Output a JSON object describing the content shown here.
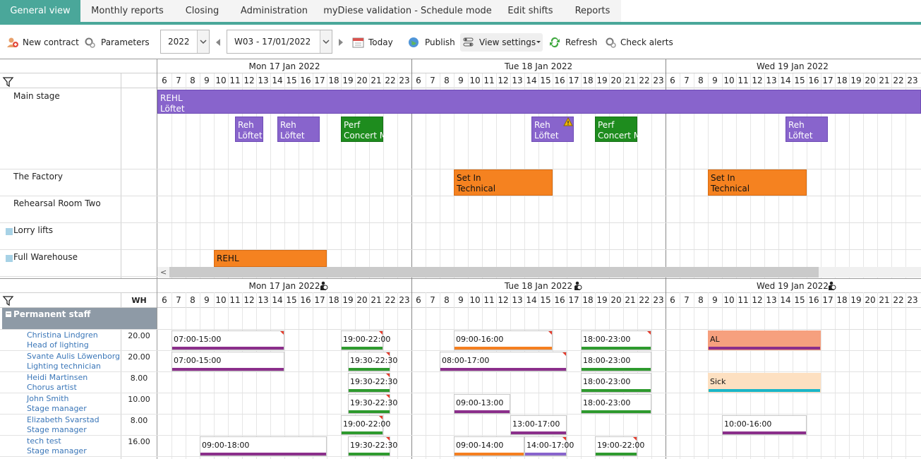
{
  "tabs": [
    {
      "label": "General view",
      "active": true
    },
    {
      "label": "Monthly reports"
    },
    {
      "label": "Closing"
    },
    {
      "label": "Administration"
    },
    {
      "label": "myDiese validation - Schedule mode"
    },
    {
      "label": "Edit shifts"
    },
    {
      "label": "Reports"
    }
  ],
  "toolbar": {
    "new_contract": "New contract",
    "parameters": "Parameters",
    "year": "2022",
    "week": "W03 - 17/01/2022",
    "today": "Today",
    "publish": "Publish",
    "view_settings": "View settings",
    "refresh": "Refresh",
    "check_alerts": "Check alerts"
  },
  "days": [
    "Mon 17 Jan 2022",
    "Tue 18 Jan 2022",
    "Wed 19 Jan 2022"
  ],
  "hours": [
    "6",
    "7",
    "8",
    "9",
    "10",
    "11",
    "12",
    "13",
    "14",
    "15",
    "16",
    "17",
    "18",
    "19",
    "20",
    "21",
    "22",
    "23"
  ],
  "resources": [
    {
      "name": "Main stage",
      "checkbox": false
    },
    {
      "name": "The Factory",
      "checkbox": false
    },
    {
      "name": "Rehearsal Room Two",
      "checkbox": false
    },
    {
      "name": "Lorry lifts",
      "checkbox": true
    },
    {
      "name": "Full Warehouse",
      "checkbox": true
    }
  ],
  "events": [
    {
      "l1": "REHL",
      "l2": "Löftet",
      "color": "purple",
      "res": 0,
      "row": 0,
      "start_day": 0,
      "start_hour": 6,
      "end_day": 2,
      "end_hour": 24.6
    },
    {
      "l1": "Reh",
      "l2": "Löftet",
      "color": "purple",
      "res": 0,
      "row": 1,
      "start_day": 0,
      "start_hour": 11.5,
      "end_day": 0,
      "end_hour": 13.5
    },
    {
      "l1": "Reh",
      "l2": "Löftet",
      "color": "purple",
      "res": 0,
      "row": 1,
      "start_day": 0,
      "start_hour": 14.5,
      "end_day": 0,
      "end_hour": 17.5
    },
    {
      "l1": "Perf",
      "l2": "Concert M",
      "color": "green",
      "res": 0,
      "row": 1,
      "start_day": 0,
      "start_hour": 19,
      "end_day": 0,
      "end_hour": 22
    },
    {
      "l1": "Reh",
      "l2": "Löftet",
      "color": "purple",
      "res": 0,
      "row": 1,
      "start_day": 1,
      "start_hour": 14.5,
      "end_day": 1,
      "end_hour": 17.5,
      "warning": true
    },
    {
      "l1": "Perf",
      "l2": "Concert M",
      "color": "green",
      "res": 0,
      "row": 1,
      "start_day": 1,
      "start_hour": 19,
      "end_day": 1,
      "end_hour": 22
    },
    {
      "l1": "Reh",
      "l2": "Löftet",
      "color": "purple",
      "res": 0,
      "row": 1,
      "start_day": 2,
      "start_hour": 14.5,
      "end_day": 2,
      "end_hour": 17.5
    },
    {
      "l1": "Set In",
      "l2": "Technical",
      "color": "orange",
      "res": 1,
      "row": 0,
      "start_day": 1,
      "start_hour": 9,
      "end_day": 1,
      "end_hour": 16
    },
    {
      "l1": "Set In",
      "l2": "Technical",
      "color": "orange",
      "res": 1,
      "row": 0,
      "start_day": 2,
      "start_hour": 9,
      "end_day": 2,
      "end_hour": 16
    },
    {
      "l1": "REHL",
      "l2": "",
      "color": "orange",
      "res": 4,
      "row": 0,
      "start_day": 0,
      "start_hour": 10,
      "end_day": 0,
      "end_hour": 18
    }
  ],
  "staff": {
    "wh_label": "WH",
    "group_label": "Permanent staff",
    "members": [
      {
        "name": "Christina Lindgren",
        "role": "Head of lighting",
        "wh": "20.00"
      },
      {
        "name": "Svante Aulis Löwenborg",
        "role": "Lighting technician",
        "wh": "20.00"
      },
      {
        "name": "Heidi Martinsen",
        "role": "Chorus artist",
        "wh": "8.00"
      },
      {
        "name": "John Smith",
        "role": "Stage manager",
        "wh": "10.00"
      },
      {
        "name": "Elizabeth Svarstad",
        "role": "Stage manager",
        "wh": "8.00"
      },
      {
        "name": "tech test",
        "role": "Stage manager",
        "wh": "16.00"
      }
    ]
  },
  "shifts": [
    {
      "row": 0,
      "day": 0,
      "s": 7,
      "e": 15,
      "text": "07:00-15:00",
      "bar": "#8b2f8b",
      "tri": true
    },
    {
      "row": 0,
      "day": 0,
      "s": 19,
      "e": 22,
      "text": "19:00-22:00",
      "bar": "#2e9a2e",
      "tri": true
    },
    {
      "row": 0,
      "day": 1,
      "s": 9,
      "e": 16,
      "text": "09:00-16:00",
      "bar": "#f57f20",
      "tri": true
    },
    {
      "row": 0,
      "day": 1,
      "s": 18,
      "e": 23,
      "text": "18:00-23:00",
      "bar": "#2e9a2e",
      "tri": true
    },
    {
      "row": 0,
      "day": 2,
      "s": 9,
      "e": 17,
      "text": "AL",
      "bar": "#8b2f8b",
      "bg": "#f6a07e"
    },
    {
      "row": 1,
      "day": 0,
      "s": 7,
      "e": 15,
      "text": "07:00-15:00",
      "bar": "#8b2f8b"
    },
    {
      "row": 1,
      "day": 0,
      "s": 19.5,
      "e": 22.5,
      "text": "19:30-22:30",
      "bar": "#2e9a2e",
      "tri": true
    },
    {
      "row": 1,
      "day": 1,
      "s": 8,
      "e": 17,
      "text": "08:00-17:00",
      "bar": "#8b2f8b",
      "tri": true
    },
    {
      "row": 1,
      "day": 1,
      "s": 18,
      "e": 23,
      "text": "18:00-23:00",
      "bar": "#2e9a2e"
    },
    {
      "row": 2,
      "day": 0,
      "s": 19.5,
      "e": 22.5,
      "text": "19:30-22:30",
      "bar": "#2e9a2e",
      "tri": true
    },
    {
      "row": 2,
      "day": 1,
      "s": 18,
      "e": 23,
      "text": "18:00-23:00",
      "bar": "#2e9a2e"
    },
    {
      "row": 2,
      "day": 2,
      "s": 9,
      "e": 17,
      "text": "Sick",
      "bar": "#1ab6c8",
      "bg": "#fde0c1"
    },
    {
      "row": 3,
      "day": 0,
      "s": 19.5,
      "e": 22.5,
      "text": "19:30-22:30",
      "bar": "#2e9a2e",
      "tri": true
    },
    {
      "row": 3,
      "day": 1,
      "s": 9,
      "e": 13,
      "text": "09:00-13:00",
      "bar": "#8b2f8b"
    },
    {
      "row": 3,
      "day": 1,
      "s": 18,
      "e": 23,
      "text": "18:00-23:00",
      "bar": "#2e9a2e"
    },
    {
      "row": 4,
      "day": 0,
      "s": 19,
      "e": 22,
      "text": "19:00-22:00",
      "bar": "#2e9a2e",
      "tri": true
    },
    {
      "row": 4,
      "day": 1,
      "s": 13,
      "e": 17,
      "text": "13:00-17:00",
      "bar": "#8b2f8b"
    },
    {
      "row": 4,
      "day": 2,
      "s": 10,
      "e": 16,
      "text": "10:00-16:00",
      "bar": "#8b2f8b"
    },
    {
      "row": 5,
      "day": 0,
      "s": 9,
      "e": 18,
      "text": "09:00-18:00",
      "bar": "#8b2f8b"
    },
    {
      "row": 5,
      "day": 0,
      "s": 19.5,
      "e": 22.5,
      "text": "19:30-22:30",
      "bar": "#2e9a2e",
      "tri": true
    },
    {
      "row": 5,
      "day": 1,
      "s": 9,
      "e": 14,
      "text": "09:00-14:00",
      "bar": "#f57f20"
    },
    {
      "row": 5,
      "day": 1,
      "s": 14,
      "e": 17,
      "text": "14:00-17:00",
      "bar": "#8864cc",
      "tri": true
    },
    {
      "row": 5,
      "day": 1,
      "s": 19,
      "e": 22,
      "text": "19:00-22:00",
      "bar": "#2e9a2e",
      "tri": true
    }
  ]
}
